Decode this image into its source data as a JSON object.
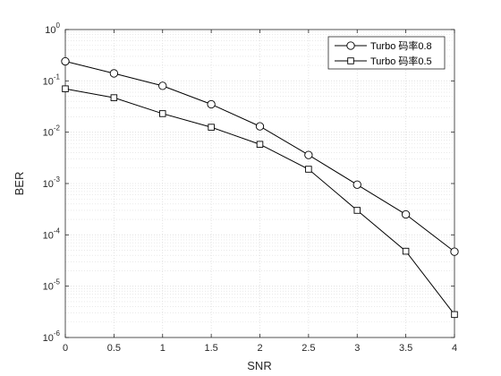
{
  "chart_data": {
    "type": "line",
    "xlabel": "SNR",
    "ylabel": "BER",
    "x": [
      0,
      0.5,
      1,
      1.5,
      2,
      2.5,
      3,
      3.5,
      4
    ],
    "xlim": [
      0,
      4
    ],
    "ylim": [
      1e-06,
      1
    ],
    "yscale": "log",
    "grid": true,
    "minor_grid": true,
    "legend_position": "top-right",
    "x_ticks": [
      "0",
      "0.5",
      "1",
      "1.5",
      "2",
      "2.5",
      "3",
      "3.5",
      "4"
    ],
    "y_ticks": [
      {
        "base": "10",
        "exp": "-6"
      },
      {
        "base": "10",
        "exp": "-5"
      },
      {
        "base": "10",
        "exp": "-4"
      },
      {
        "base": "10",
        "exp": "-3"
      },
      {
        "base": "10",
        "exp": "-2"
      },
      {
        "base": "10",
        "exp": "-1"
      },
      {
        "base": "10",
        "exp": "0"
      }
    ],
    "series": [
      {
        "name": "Turbo 码率0.8",
        "marker": "circle",
        "values": [
          0.24,
          0.14,
          0.08,
          0.035,
          0.013,
          0.0036,
          0.00095,
          0.00025,
          4.7e-05
        ]
      },
      {
        "name": "Turbo 码率0.5",
        "marker": "square",
        "values": [
          0.07,
          0.047,
          0.023,
          0.0125,
          0.0058,
          0.0019,
          0.0003,
          4.8e-05,
          2.8e-06
        ]
      }
    ],
    "colors": {
      "line": "#000000",
      "grid": "#dcdcdc",
      "axes": "#262626",
      "marker_fill": "#ffffff"
    }
  }
}
